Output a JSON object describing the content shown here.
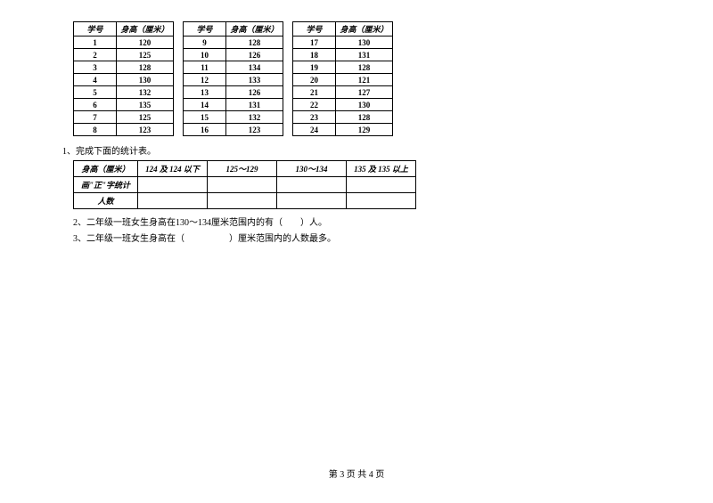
{
  "tables": {
    "header_id": "学号",
    "header_height": "身高（厘米）",
    "group1": [
      {
        "id": "1",
        "h": "120"
      },
      {
        "id": "2",
        "h": "125"
      },
      {
        "id": "3",
        "h": "128"
      },
      {
        "id": "4",
        "h": "130"
      },
      {
        "id": "5",
        "h": "132"
      },
      {
        "id": "6",
        "h": "135"
      },
      {
        "id": "7",
        "h": "125"
      },
      {
        "id": "8",
        "h": "123"
      }
    ],
    "group2": [
      {
        "id": "9",
        "h": "128"
      },
      {
        "id": "10",
        "h": "126"
      },
      {
        "id": "11",
        "h": "134"
      },
      {
        "id": "12",
        "h": "133"
      },
      {
        "id": "13",
        "h": "126"
      },
      {
        "id": "14",
        "h": "131"
      },
      {
        "id": "15",
        "h": "132"
      },
      {
        "id": "16",
        "h": "123"
      }
    ],
    "group3": [
      {
        "id": "17",
        "h": "130"
      },
      {
        "id": "18",
        "h": "131"
      },
      {
        "id": "19",
        "h": "128"
      },
      {
        "id": "20",
        "h": "121"
      },
      {
        "id": "21",
        "h": "127"
      },
      {
        "id": "22",
        "h": "130"
      },
      {
        "id": "23",
        "h": "128"
      },
      {
        "id": "24",
        "h": "129"
      }
    ]
  },
  "questions": {
    "q1": "1、完成下面的统计表。",
    "q2": "2、二年级一班女生身高在130～134厘米范围内的有（　　）人。",
    "q3": "3、二年级一班女生身高在（　　　　　）厘米范围内的人数最多。"
  },
  "summary": {
    "row1_label": "身高（厘米）",
    "range1": "124 及 124 以下",
    "range2": "125～129",
    "range3": "130～134",
    "range4": "135 及 135 以上",
    "row2_label": "画\"正\"字统计",
    "row3_label": "人数"
  },
  "footer": "第 3 页 共 4 页"
}
